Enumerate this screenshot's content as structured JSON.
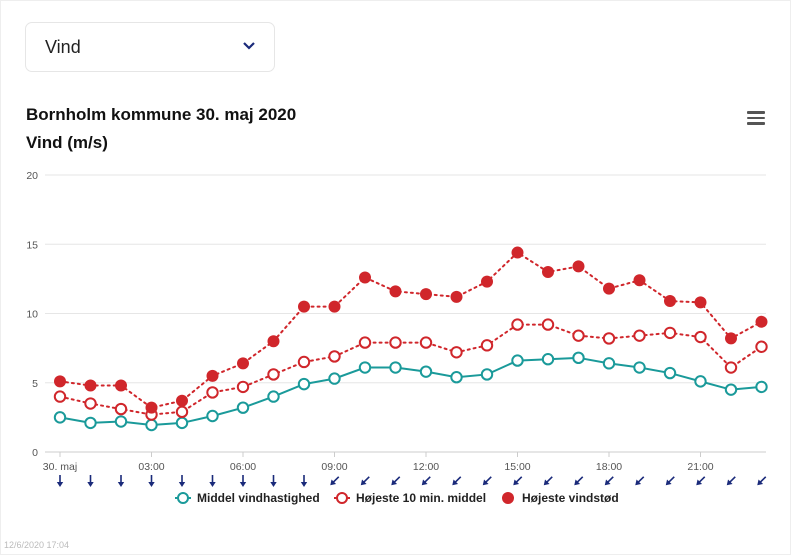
{
  "selector": {
    "value": "Vind"
  },
  "chart_data": {
    "type": "line",
    "title": "Bornholm kommune 30. maj 2020",
    "subtitle": "Vind (m/s)",
    "xlabel": "",
    "ylabel": "",
    "ylim": [
      0,
      20
    ],
    "yticks": [
      "0",
      "5",
      "10",
      "15",
      "20"
    ],
    "x": [
      0,
      1,
      2,
      3,
      4,
      5,
      6,
      7,
      8,
      9,
      10,
      11,
      12,
      13,
      14,
      15,
      16,
      17,
      18,
      19,
      20,
      21,
      22,
      23
    ],
    "xticks": [
      {
        "hour": 0,
        "label": "30. maj"
      },
      {
        "hour": 3,
        "label": "03:00"
      },
      {
        "hour": 6,
        "label": "06:00"
      },
      {
        "hour": 9,
        "label": "09:00"
      },
      {
        "hour": 12,
        "label": "12:00"
      },
      {
        "hour": 15,
        "label": "15:00"
      },
      {
        "hour": 18,
        "label": "18:00"
      },
      {
        "hour": 21,
        "label": "21:00"
      }
    ],
    "series": [
      {
        "name": "Middel vindhastighed",
        "color": "#1a9a9a",
        "style": "solid-hollow",
        "values": [
          2.5,
          2.1,
          2.2,
          1.95,
          2.1,
          2.6,
          3.2,
          4.0,
          4.9,
          5.3,
          6.1,
          6.1,
          5.8,
          5.4,
          5.6,
          6.6,
          6.7,
          6.8,
          6.4,
          6.1,
          5.7,
          5.1,
          4.5,
          4.7
        ]
      },
      {
        "name": "Højeste 10 min. middel",
        "color": "#d0262b",
        "style": "dotted-hollow",
        "values": [
          4.0,
          3.5,
          3.1,
          2.7,
          2.9,
          4.3,
          4.7,
          5.6,
          6.5,
          6.9,
          7.9,
          7.9,
          7.9,
          7.2,
          7.7,
          9.2,
          9.2,
          8.4,
          8.2,
          8.4,
          8.6,
          8.3,
          6.1,
          7.6
        ]
      },
      {
        "name": "Højeste vindstød",
        "color": "#d0262b",
        "style": "dotted-filled",
        "values": [
          5.1,
          4.8,
          4.8,
          3.2,
          3.7,
          5.5,
          6.4,
          8.0,
          10.5,
          10.5,
          12.6,
          11.6,
          11.4,
          11.2,
          12.3,
          14.4,
          13.0,
          13.4,
          11.8,
          12.4,
          10.9,
          10.8,
          8.2,
          9.4
        ]
      }
    ],
    "wind_direction_deg": [
      0,
      0,
      0,
      0,
      0,
      0,
      0,
      0,
      0,
      45,
      45,
      45,
      45,
      45,
      45,
      45,
      45,
      45,
      45,
      45,
      45,
      45,
      45,
      45
    ],
    "arrow_color": "#1a2a7a",
    "grid": true,
    "legend": "bottom-center"
  },
  "footer": {
    "timestamp": "12/6/2020 17:04"
  }
}
